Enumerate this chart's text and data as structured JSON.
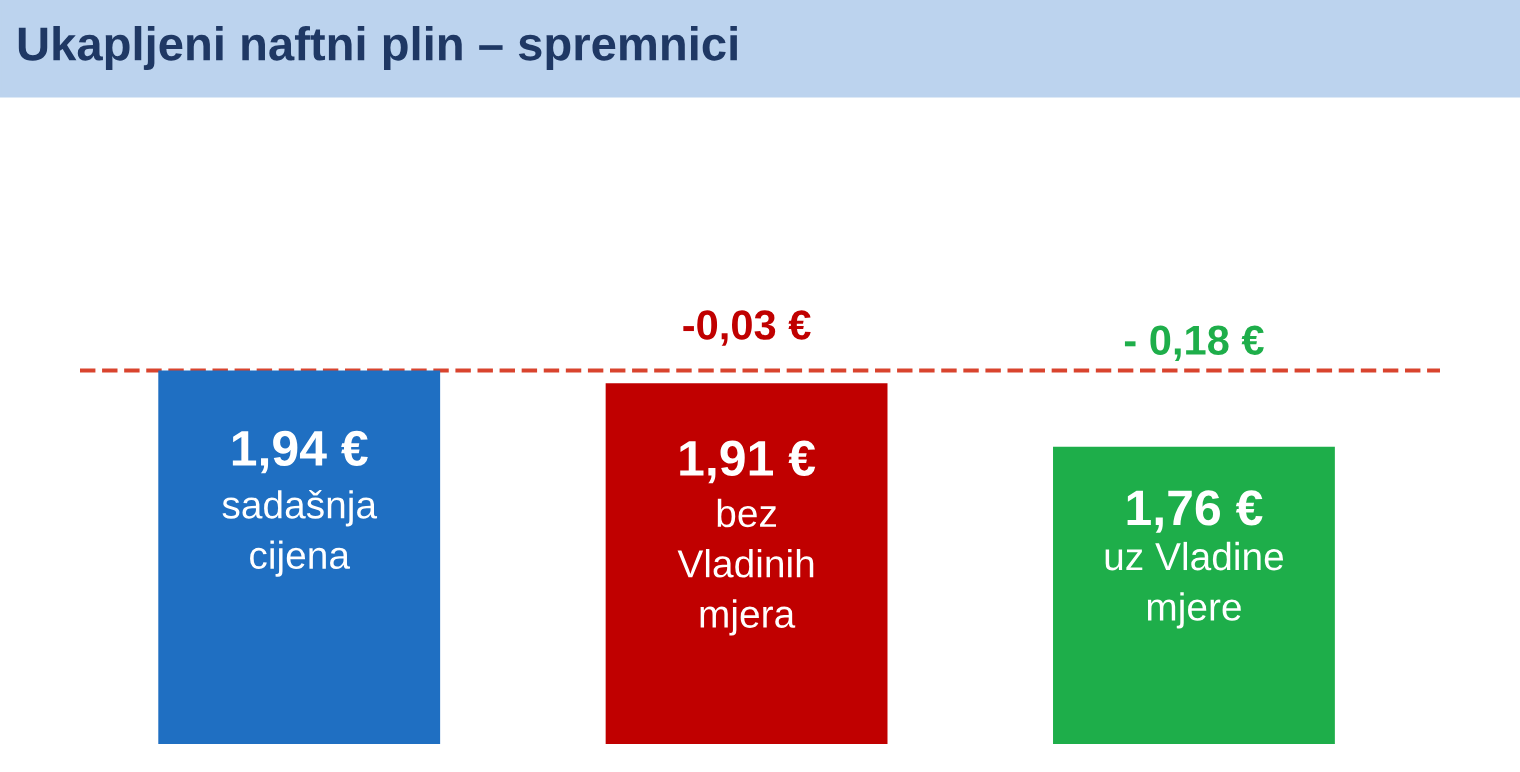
{
  "chart_data": {
    "type": "bar",
    "title": "Ukapljeni naftni plin – spremnici",
    "categories": [
      "sadašnja\ncijena",
      "bez\nVladinih\nmjera",
      "uz Vladine\nmjere"
    ],
    "values": [
      1.94,
      1.91,
      1.76
    ],
    "colors": [
      "#1f6fc2",
      "#c00000",
      "#1eae4a"
    ],
    "value_labels": [
      "1,94 €",
      "1,91 €",
      "1,76 €"
    ],
    "tick_labels": false,
    "legend": false,
    "ref_lines": [
      {
        "axis": "y",
        "value": 1.94,
        "color": "#d9442e",
        "line_style": "dashed"
      }
    ],
    "annotations": [
      "-0,03 €",
      "- 0,18 €"
    ]
  }
}
